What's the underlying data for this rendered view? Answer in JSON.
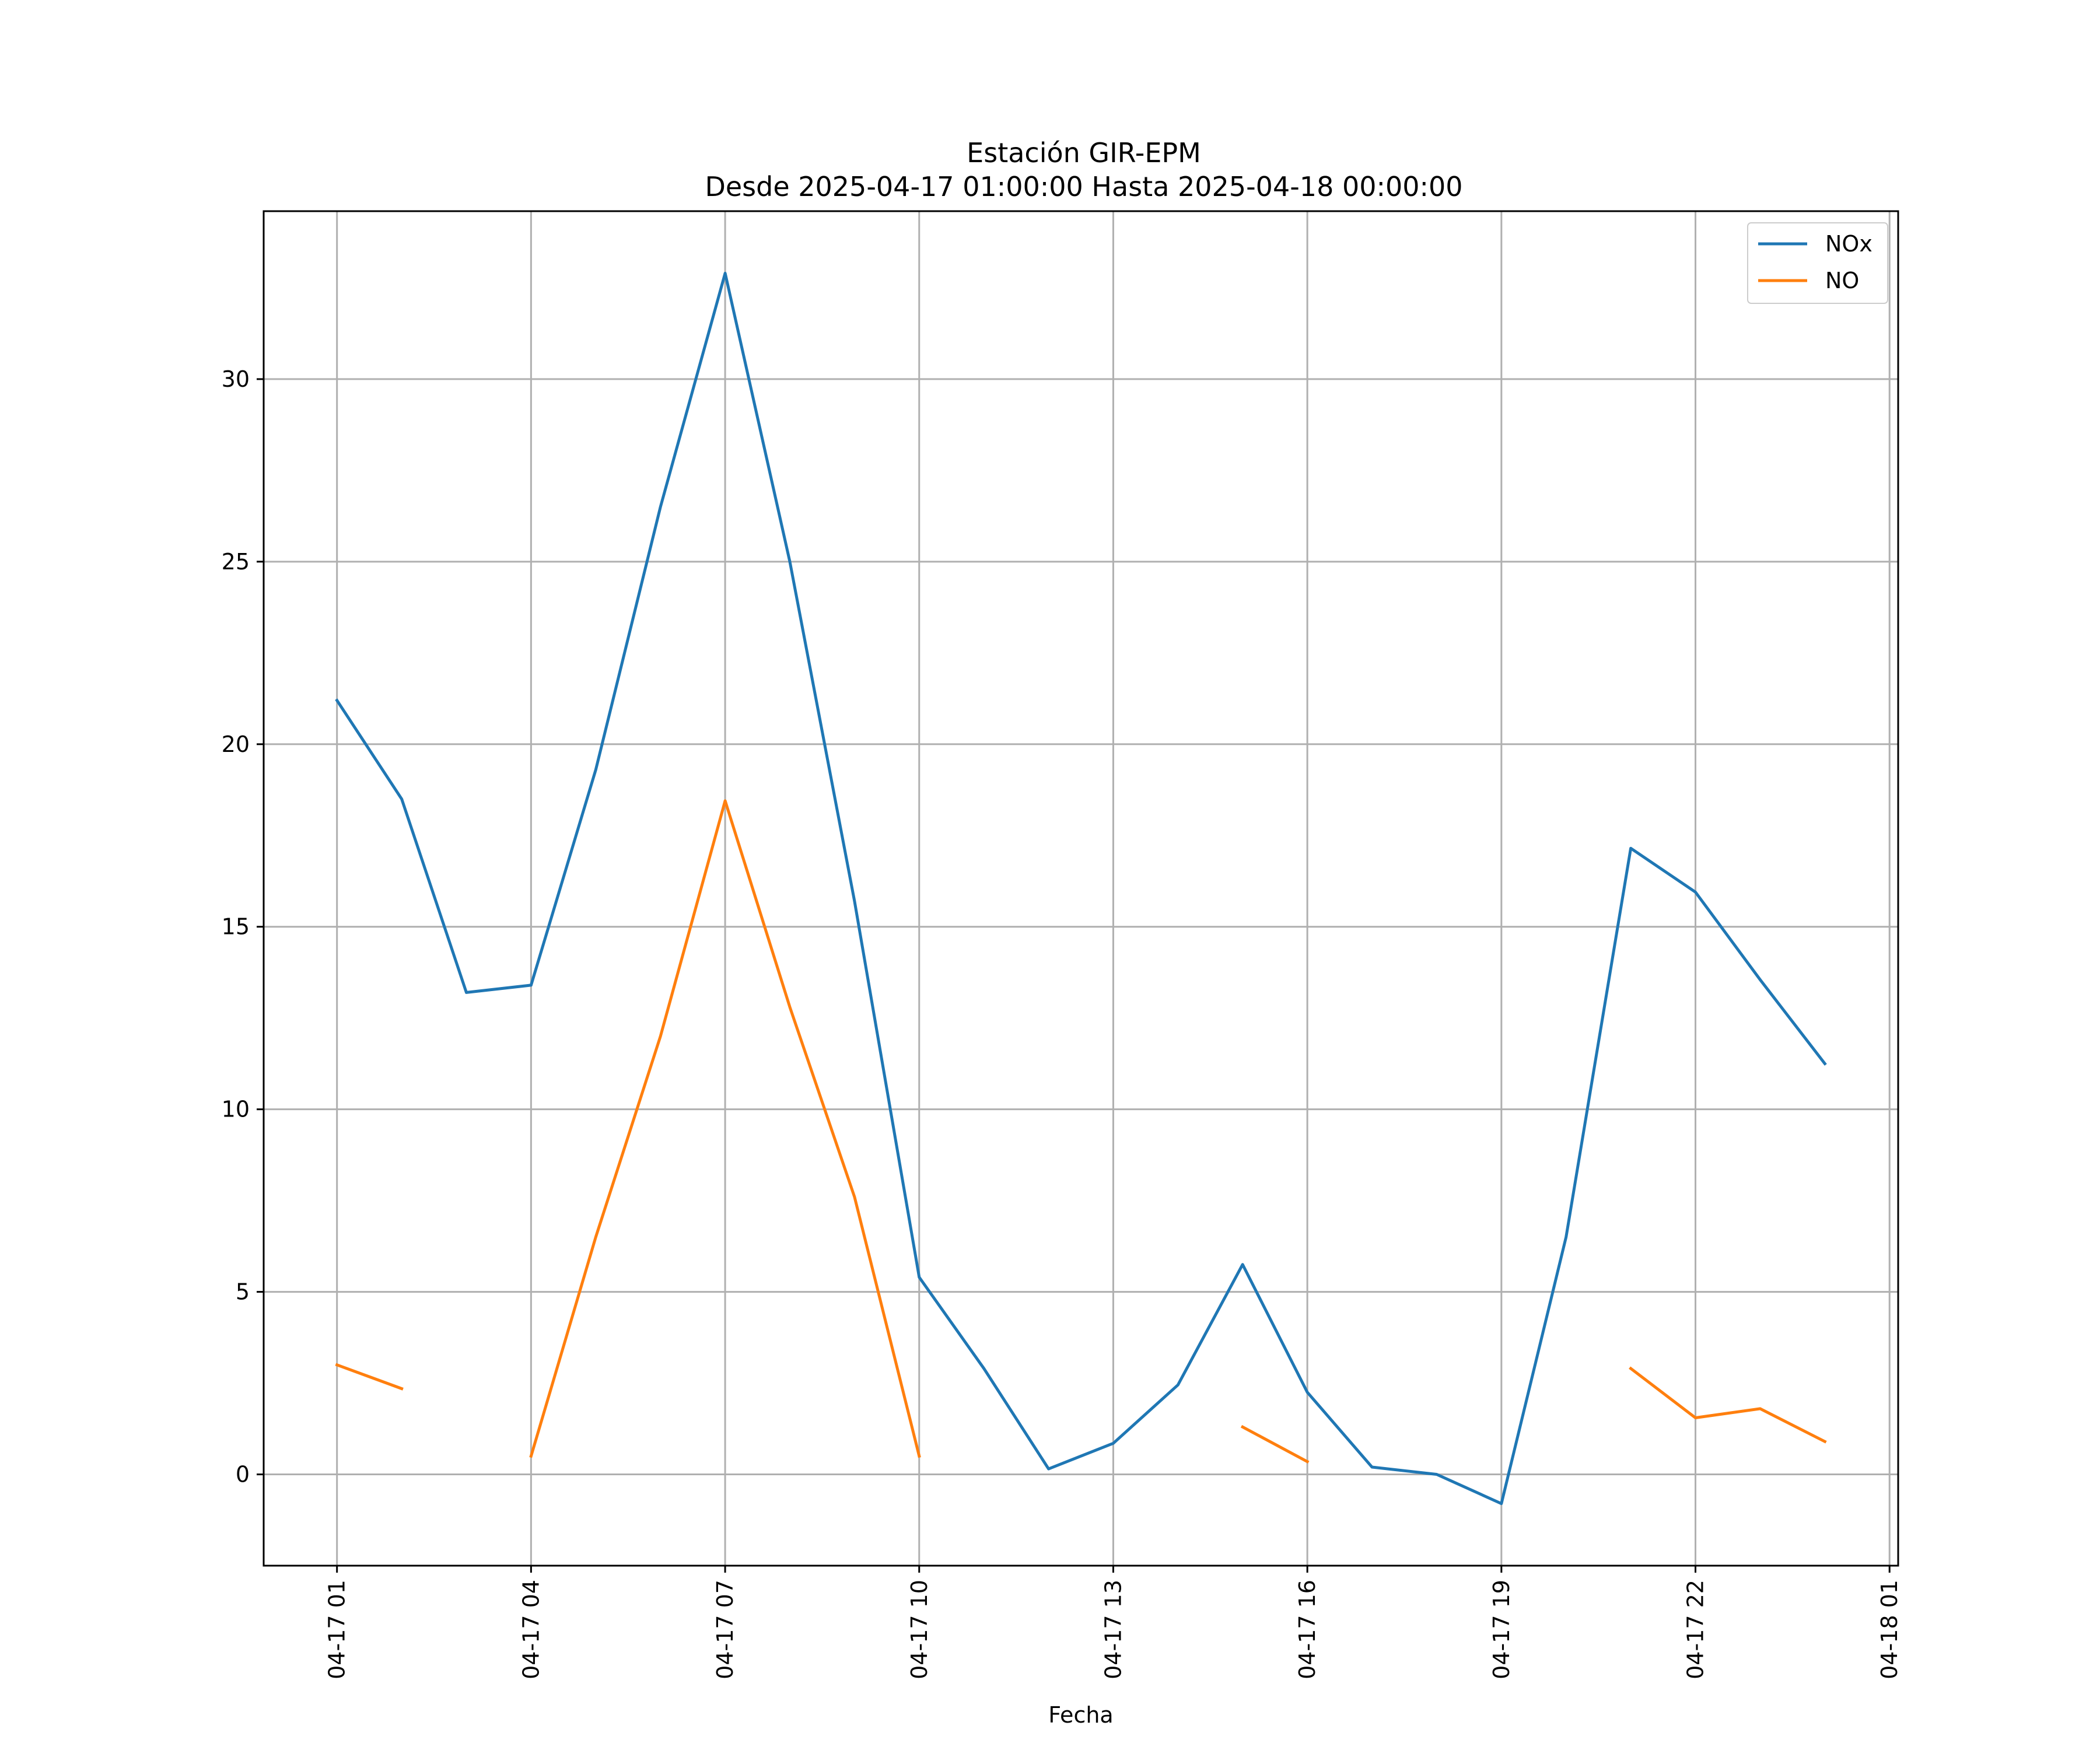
{
  "chart_data": {
    "type": "line",
    "title": "Estación GIR-EPM",
    "subtitle": "Desde 2025-04-17 01:00:00 Hasta 2025-04-18 00:00:00",
    "xlabel": "Fecha",
    "ylabel": "",
    "x": [
      "2025-04-17 01:00",
      "2025-04-17 02:00",
      "2025-04-17 03:00",
      "2025-04-17 04:00",
      "2025-04-17 05:00",
      "2025-04-17 06:00",
      "2025-04-17 07:00",
      "2025-04-17 08:00",
      "2025-04-17 09:00",
      "2025-04-17 10:00",
      "2025-04-17 11:00",
      "2025-04-17 12:00",
      "2025-04-17 13:00",
      "2025-04-17 14:00",
      "2025-04-17 15:00",
      "2025-04-17 16:00",
      "2025-04-17 17:00",
      "2025-04-17 18:00",
      "2025-04-17 19:00",
      "2025-04-17 20:00",
      "2025-04-17 21:00",
      "2025-04-17 22:00",
      "2025-04-17 23:00",
      "2025-04-18 00:00"
    ],
    "x_range": [
      "2025-04-16 23:52",
      "2025-04-18 01:08"
    ],
    "x_ticks": [
      {
        "at": "2025-04-17 01:00",
        "label": "04-17 01"
      },
      {
        "at": "2025-04-17 04:00",
        "label": "04-17 04"
      },
      {
        "at": "2025-04-17 07:00",
        "label": "04-17 07"
      },
      {
        "at": "2025-04-17 10:00",
        "label": "04-17 10"
      },
      {
        "at": "2025-04-17 13:00",
        "label": "04-17 13"
      },
      {
        "at": "2025-04-17 16:00",
        "label": "04-17 16"
      },
      {
        "at": "2025-04-17 19:00",
        "label": "04-17 19"
      },
      {
        "at": "2025-04-17 22:00",
        "label": "04-17 22"
      },
      {
        "at": "2025-04-18 01:00",
        "label": "04-18 01"
      }
    ],
    "ylim": [
      -2.5,
      34.6
    ],
    "y_ticks": [
      0,
      5,
      10,
      15,
      20,
      25,
      30
    ],
    "grid": true,
    "legend_position": "top-right",
    "series": [
      {
        "name": "NOx",
        "color": "#1f77b4",
        "values": [
          21.2,
          18.5,
          13.2,
          13.4,
          19.3,
          26.5,
          32.9,
          25.0,
          15.7,
          5.4,
          2.9,
          0.15,
          0.85,
          2.45,
          5.75,
          2.25,
          0.2,
          0.0,
          -0.8,
          6.5,
          17.15,
          15.95,
          13.55,
          11.25
        ]
      },
      {
        "name": "NO",
        "color": "#ff7f0e",
        "values": [
          3.0,
          2.35,
          null,
          0.5,
          6.5,
          12.0,
          18.45,
          12.8,
          7.6,
          0.5,
          null,
          null,
          null,
          null,
          1.3,
          0.35,
          null,
          null,
          null,
          null,
          2.9,
          1.55,
          1.8,
          0.9
        ]
      }
    ]
  }
}
